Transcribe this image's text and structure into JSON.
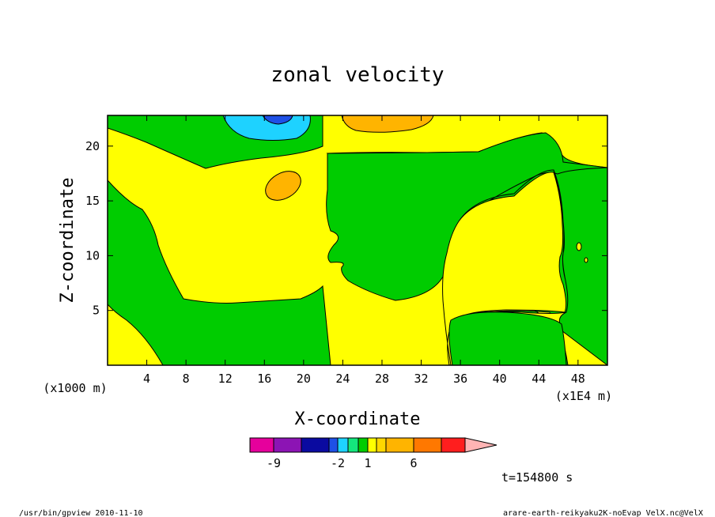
{
  "chart_data": {
    "type": "heatmap",
    "title": "zonal velocity",
    "xlabel": "X-coordinate",
    "ylabel": "Z-coordinate",
    "x_unit": "(x1000 m)",
    "x_unit_right": "(x1E4 m)",
    "xlim": [
      0,
      51
    ],
    "ylim": [
      0,
      22.8
    ],
    "xticks": [
      4,
      8,
      12,
      16,
      20,
      24,
      28,
      32,
      36,
      40,
      44,
      48
    ],
    "yticks": [
      5,
      10,
      15,
      20
    ],
    "colorbar": {
      "colors": [
        "#e6009c",
        "#8c14b4",
        "#0a0aa0",
        "#1e50e6",
        "#1ed2ff",
        "#14e67d",
        "#00cc00",
        "#ffff00",
        "#ffd700",
        "#ffb400",
        "#ff7800",
        "#ff1e1e",
        "#ff7878",
        "#ffb4b4"
      ],
      "labels": [
        "-9",
        "-2",
        "1",
        "6"
      ]
    },
    "regions": [
      {
        "level": "0 to 1",
        "color": "#ffff00"
      },
      {
        "level": "-1 to 0",
        "color": "#00cc00"
      },
      {
        "level": "-3 to -2",
        "color": "#1ed2ff"
      },
      {
        "level": "-5 to -3",
        "color": "#1e50e6"
      },
      {
        "level": "2 to 3",
        "color": "#ffb400"
      }
    ]
  },
  "footer": {
    "time": "t=154800 s",
    "program": "/usr/bin/gpview  2010-11-10",
    "file": "arare-earth-reikyaku2K-noEvap_VelX.nc@VelX"
  }
}
